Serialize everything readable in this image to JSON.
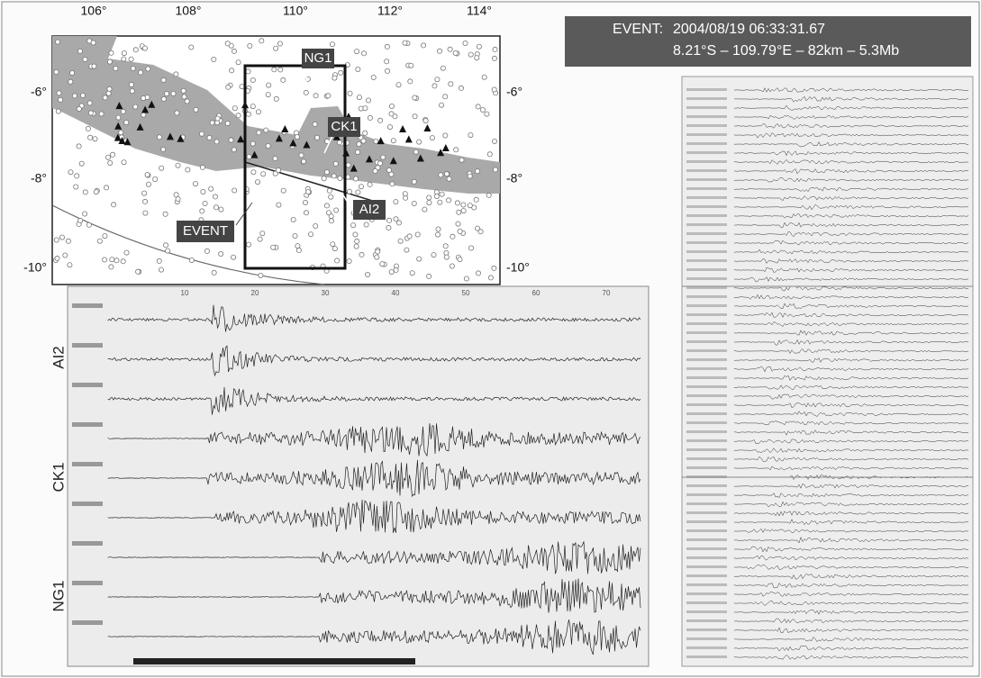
{
  "header": {
    "label": "EVENT:",
    "time": "2004/08/19 06:33:31.67",
    "location": "8.21°S – 109.79°E – 82km – 5.3Mb"
  },
  "map": {
    "lon_labels": [
      "106°",
      "108°",
      "110°",
      "112°",
      "114°"
    ],
    "lat_labels_left": [
      "-6°",
      "-8°",
      "-10°"
    ],
    "lat_labels_right": [
      "-6°",
      "-8°",
      "-10°"
    ],
    "stations": [
      "NG1",
      "CK1",
      "AI2"
    ],
    "event_label": "EVENT"
  },
  "seismograms": {
    "groups": [
      "AI2",
      "CK1",
      "NG1"
    ],
    "time_labels": [
      "10",
      "20",
      "30",
      "40",
      "50",
      "60",
      "70"
    ]
  }
}
